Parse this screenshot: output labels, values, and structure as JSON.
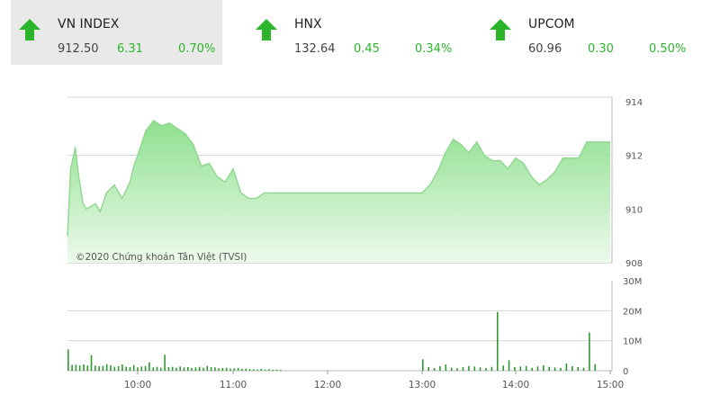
{
  "tickers": [
    {
      "name": "VN INDEX",
      "value": "912.50",
      "change": "6.31",
      "percent": "0.70%",
      "direction": "up",
      "active": true
    },
    {
      "name": "HNX",
      "value": "132.64",
      "change": "0.45",
      "percent": "0.34%",
      "direction": "up",
      "active": false
    },
    {
      "name": "UPCOM",
      "value": "60.96",
      "change": "0.30",
      "percent": "0.50%",
      "direction": "up",
      "active": false
    }
  ],
  "colors": {
    "up": "#2bb52b",
    "area_top": "#8fe08f",
    "area_bottom": "#ecfaec",
    "line": "#8ed88e",
    "bar": "#2e9a2e",
    "grid": "#d6d6d6"
  },
  "icons": {
    "up": "arrow-up-icon"
  },
  "watermark": "©2020 Chứng khoán Tân Việt (TVSI)",
  "chart_data": [
    {
      "type": "area",
      "ylim": [
        908,
        914
      ],
      "yticks": [
        "914",
        "912",
        "910",
        "908"
      ],
      "xticks": [
        "10:00",
        "11:00",
        "12:00",
        "13:00",
        "14:00",
        "15:00"
      ],
      "xlim": [
        "09:15",
        "15:00"
      ],
      "x": [
        "09:15",
        "09:17",
        "09:20",
        "09:22",
        "09:25",
        "09:27",
        "09:30",
        "09:33",
        "09:36",
        "09:40",
        "09:45",
        "09:50",
        "09:55",
        "09:58",
        "10:00",
        "10:05",
        "10:10",
        "10:15",
        "10:20",
        "10:25",
        "10:30",
        "10:35",
        "10:40",
        "10:45",
        "10:50",
        "10:55",
        "11:00",
        "11:05",
        "11:10",
        "11:15",
        "11:20",
        "11:25",
        "11:30",
        "13:00",
        "13:05",
        "13:10",
        "13:15",
        "13:20",
        "13:25",
        "13:30",
        "13:35",
        "13:40",
        "13:45",
        "13:50",
        "13:55",
        "14:00",
        "14:05",
        "14:10",
        "14:15",
        "14:20",
        "14:25",
        "14:30",
        "14:35",
        "14:40",
        "14:45",
        "14:50",
        "14:55",
        "15:00"
      ],
      "y": [
        909.0,
        911.5,
        912.3,
        911.3,
        910.2,
        910.0,
        910.1,
        910.2,
        909.9,
        910.6,
        910.9,
        910.4,
        911.0,
        911.7,
        912.0,
        912.9,
        913.3,
        913.1,
        913.2,
        913.0,
        912.8,
        912.4,
        911.6,
        911.7,
        911.2,
        911.0,
        911.5,
        910.6,
        910.4,
        910.4,
        910.6,
        910.6,
        910.6,
        910.6,
        910.9,
        911.4,
        912.1,
        912.6,
        912.4,
        912.1,
        912.5,
        912.0,
        911.8,
        911.8,
        911.5,
        911.9,
        911.7,
        911.2,
        910.9,
        911.1,
        911.4,
        911.9,
        911.9,
        911.9,
        912.5,
        912.5,
        912.5,
        912.5
      ]
    },
    {
      "type": "bar",
      "ylim": [
        0,
        30
      ],
      "yticks": [
        "30M",
        "20M",
        "10M",
        "0"
      ],
      "ylabel": "",
      "x_range": [
        "09:15",
        "15:00"
      ],
      "volume_millions": [
        7.1,
        1.9,
        2.0,
        1.8,
        2.1,
        1.7,
        5.2,
        1.7,
        1.5,
        1.6,
        2.2,
        1.8,
        1.3,
        1.5,
        2.1,
        1.3,
        1.2,
        1.9,
        1.1,
        1.4,
        1.5,
        2.8,
        1.1,
        1.3,
        1.0,
        5.3,
        1.2,
        1.3,
        1.0,
        1.4,
        1.1,
        1.2,
        0.9,
        1.1,
        1.3,
        1.0,
        1.6,
        1.2,
        1.1,
        0.8,
        0.9,
        1.0,
        0.7,
        0.8,
        0.9,
        0.6,
        0.7,
        0.5,
        0.5,
        0.4,
        0.6,
        0.4,
        0.5,
        0.3,
        0.4,
        0.3,
        3.8,
        1.2,
        0.9,
        1.5,
        2.1,
        1.0,
        0.8,
        1.2,
        1.6,
        1.4,
        1.1,
        0.9,
        1.3,
        19.6,
        1.7,
        3.5,
        1.2,
        1.4,
        1.6,
        1.0,
        1.4,
        1.8,
        1.3,
        1.1,
        0.9,
        2.4,
        1.5,
        1.2,
        1.0,
        12.7,
        2.2
      ]
    }
  ]
}
